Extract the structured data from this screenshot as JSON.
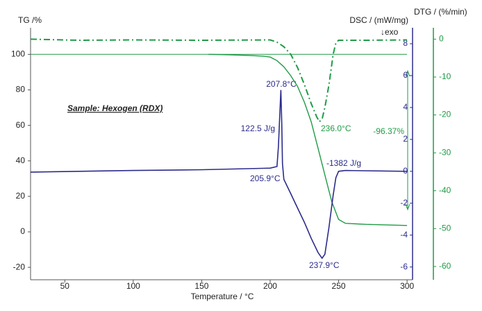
{
  "chart_data": {
    "type": "line",
    "title": "Sample: Hexogen (RDX)",
    "x_label": "Temperature / °C",
    "y_label": "TG /%",
    "y2_label": "DSC / (mW/mg)",
    "y2_note": "↓exo",
    "y3_label": "DTG / (%/min)",
    "xlim": [
      25,
      304
    ],
    "xticks": [
      50,
      100,
      150,
      200,
      250,
      300
    ],
    "ylim": [
      -27,
      115
    ],
    "yticks": [
      -20,
      0,
      20,
      40,
      60,
      80,
      100
    ],
    "y2lim": [
      -6.8,
      9
    ],
    "y2ticks": [
      -6,
      -4,
      -2,
      0,
      2,
      4,
      6,
      8
    ],
    "y3lim": [
      -63.5,
      3
    ],
    "y3ticks": [
      -60,
      -50,
      -40,
      -30,
      -20,
      -10,
      0
    ],
    "series": [
      {
        "axis": "y",
        "color": "#1e9b45",
        "style": "solid",
        "width": 1,
        "x": [
          25,
          300
        ],
        "values": [
          100,
          100
        ]
      },
      {
        "axis": "y",
        "color": "#1e9b45",
        "style": "solid",
        "width": 1.4,
        "x": [
          155,
          170,
          185,
          195,
          200,
          205,
          210,
          215,
          220,
          225,
          230,
          235,
          240,
          245,
          250,
          255,
          270,
          300
        ],
        "values": [
          100,
          99.8,
          99.4,
          99,
          98.5,
          96.5,
          93,
          88,
          82,
          73,
          62,
          47,
          32,
          17,
          7,
          4.8,
          4.2,
          3.6
        ]
      },
      {
        "axis": "y3",
        "color": "#1e9b45",
        "style": "dash-dot",
        "width": 2,
        "x": [
          25,
          60,
          100,
          150,
          200,
          205,
          210,
          215,
          220,
          225,
          230,
          234,
          236,
          238,
          240,
          243,
          246,
          248,
          250,
          270,
          300
        ],
        "values": [
          0,
          -0.3,
          -0.2,
          -0.3,
          -0.2,
          -0.8,
          -2,
          -4,
          -7.5,
          -12,
          -17,
          -20.5,
          -21.8,
          -21,
          -18,
          -12,
          -4,
          -1,
          -0.3,
          -0.3,
          -0.2
        ]
      },
      {
        "axis": "y2",
        "color": "#2b2b8c",
        "style": "solid",
        "width": 1.6,
        "x": [
          25,
          100,
          150,
          200,
          205,
          206,
          207,
          207.8,
          208.5,
          209,
          210,
          215,
          220,
          225,
          230,
          235,
          237.9,
          240,
          243,
          246,
          248,
          250,
          255,
          300
        ],
        "values": [
          -0.05,
          0.05,
          0.1,
          0.2,
          0.3,
          1.5,
          3.5,
          5.1,
          3,
          0.5,
          -0.5,
          -1.4,
          -2.3,
          -3.2,
          -4.2,
          -5.1,
          -5.45,
          -5.2,
          -3.5,
          -1.5,
          -0.4,
          0,
          0.05,
          0
        ]
      }
    ],
    "annotations": [
      {
        "text": "207.8°C"
      },
      {
        "text": "122.5 J/g"
      },
      {
        "text": "205.9°C"
      },
      {
        "text": "-1382 J/g"
      },
      {
        "text": "237.9°C"
      },
      {
        "text": "236.0°C"
      },
      {
        "text": "-96.37%"
      }
    ]
  }
}
